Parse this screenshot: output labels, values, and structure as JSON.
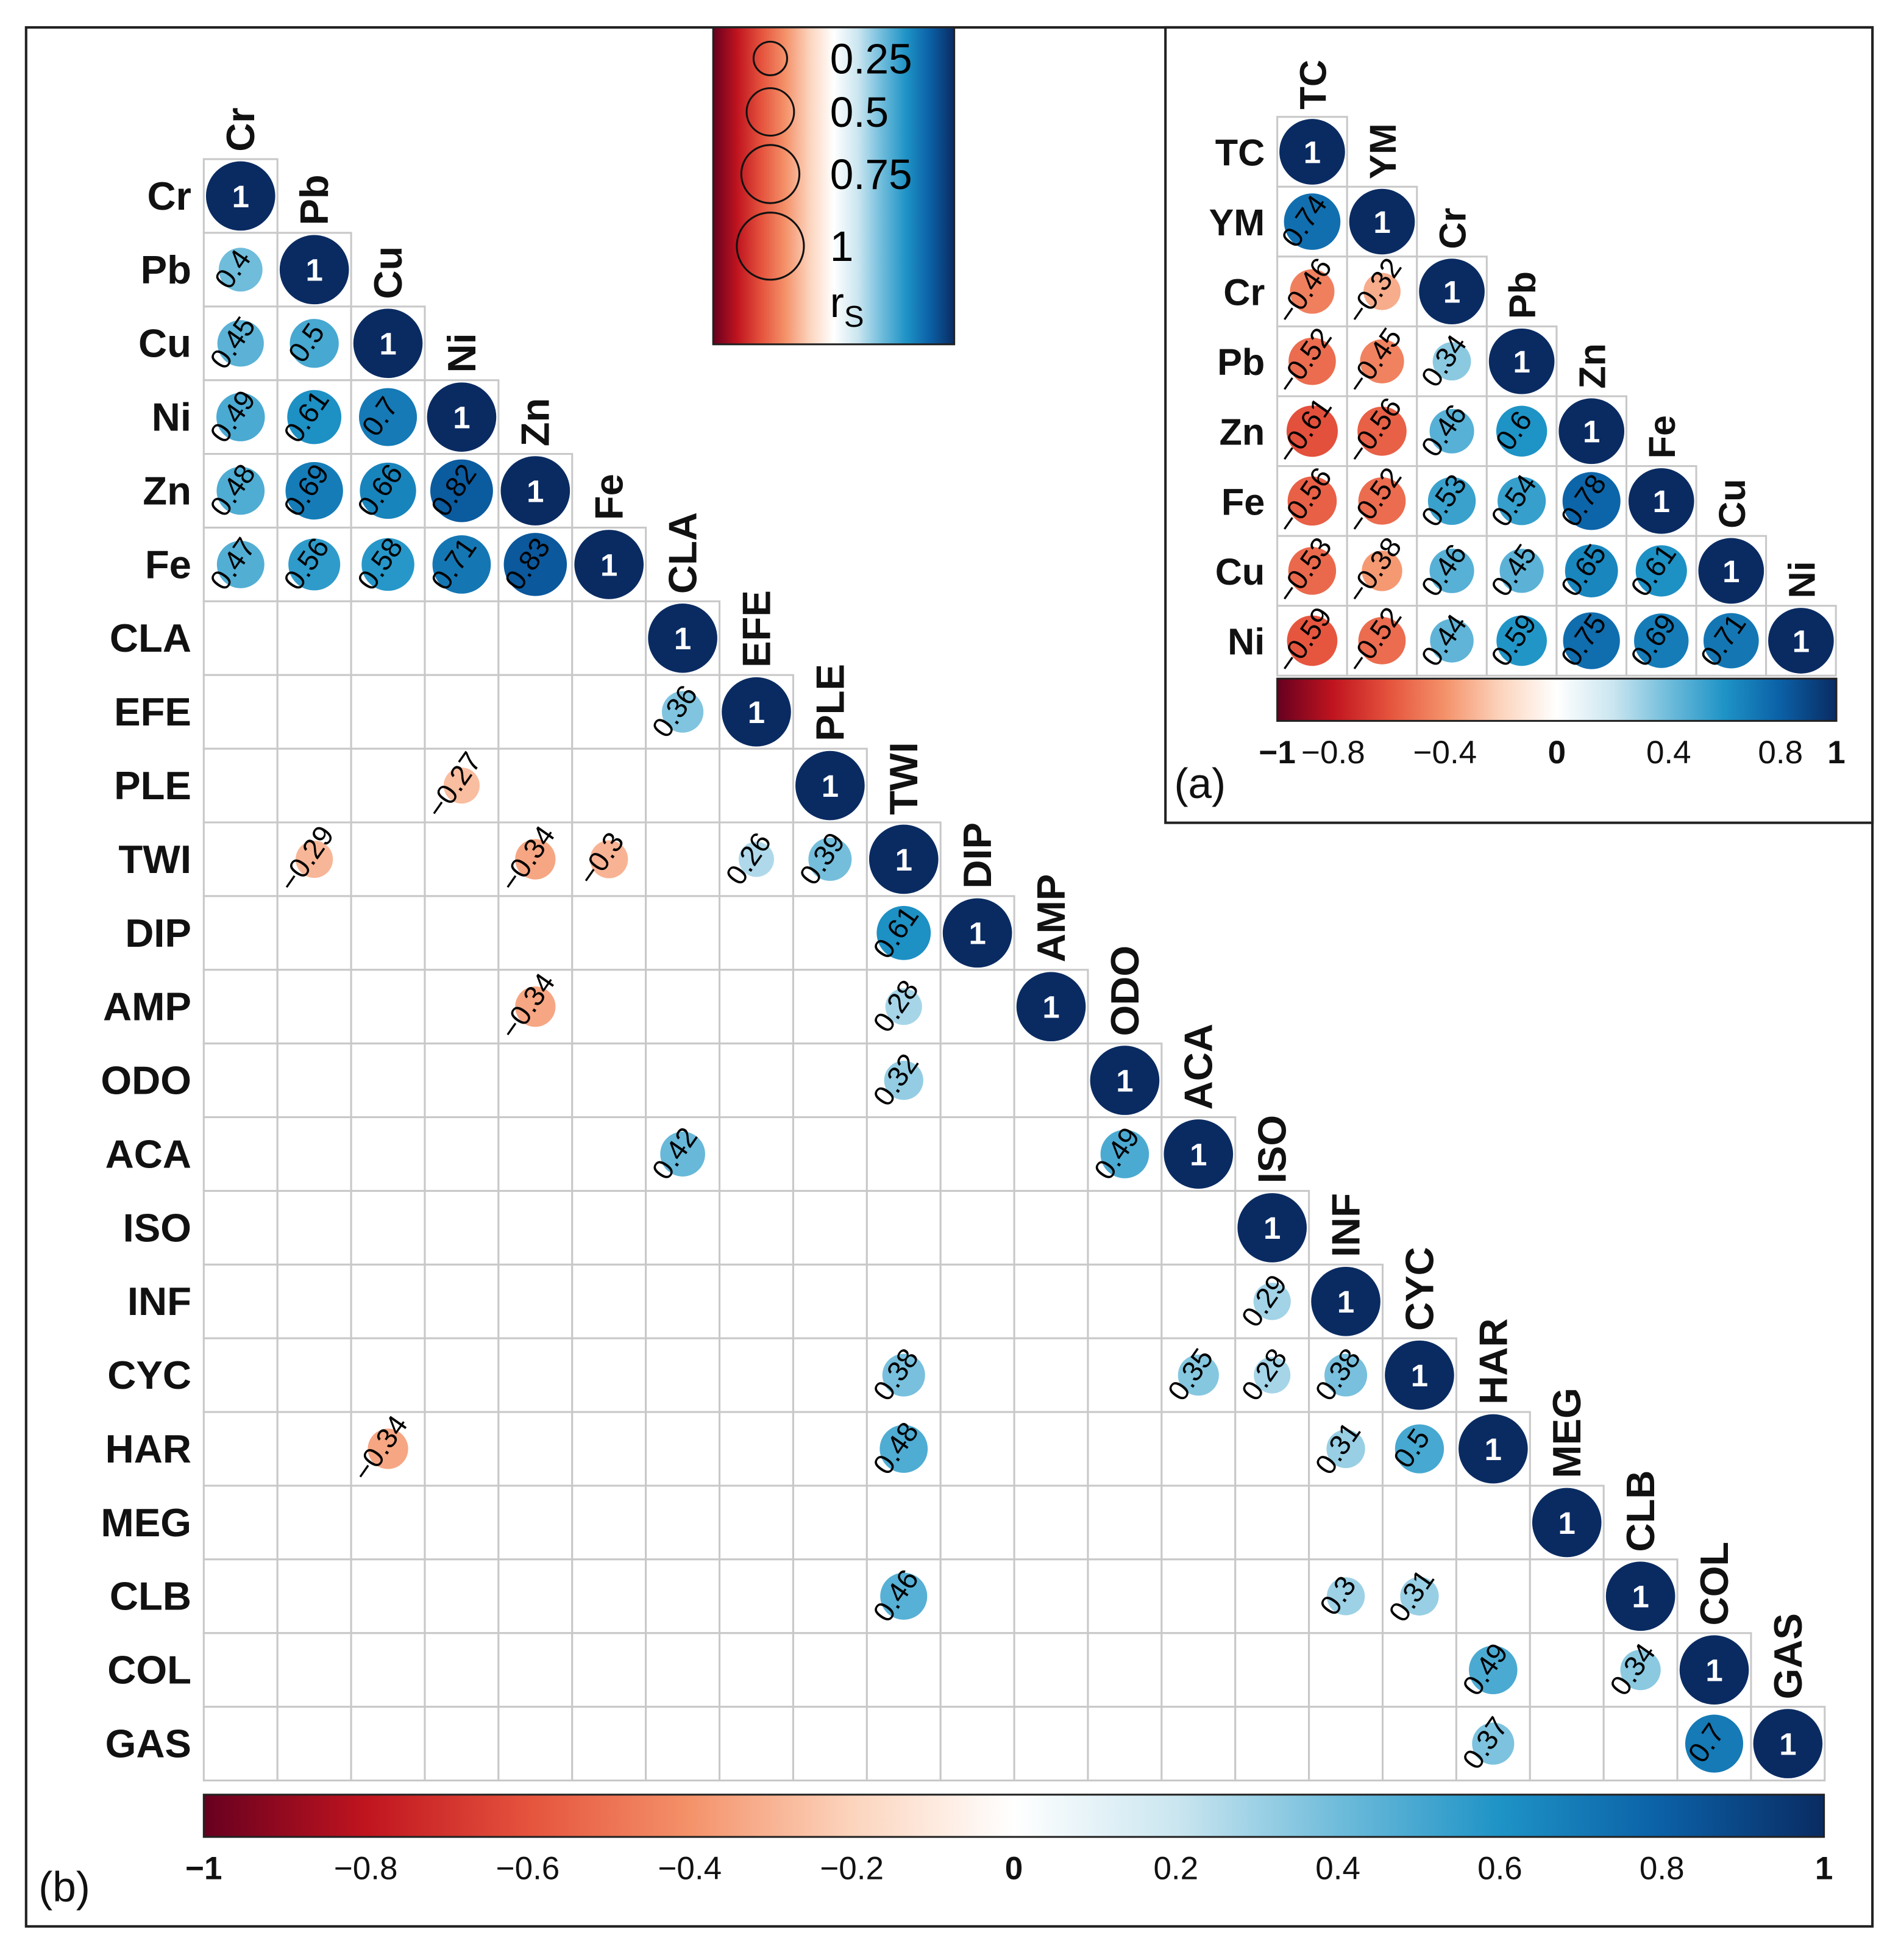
{
  "chart_data": [
    {
      "type": "heatmap",
      "panel_label": "(b)",
      "variables": [
        "Cr",
        "Pb",
        "Cu",
        "Ni",
        "Zn",
        "Fe",
        "CLA",
        "EFE",
        "PLE",
        "TWI",
        "DIP",
        "AMP",
        "ODO",
        "ACA",
        "ISO",
        "INF",
        "CYC",
        "HAR",
        "MEG",
        "CLB",
        "COL",
        "GAS"
      ],
      "diagonal_value": 1,
      "entries": [
        [
          "Pb",
          "Cr",
          0.4
        ],
        [
          "Cu",
          "Cr",
          0.45
        ],
        [
          "Cu",
          "Pb",
          0.5
        ],
        [
          "Ni",
          "Cr",
          0.49
        ],
        [
          "Ni",
          "Pb",
          0.61
        ],
        [
          "Ni",
          "Cu",
          0.7
        ],
        [
          "Zn",
          "Cr",
          0.48
        ],
        [
          "Zn",
          "Pb",
          0.69
        ],
        [
          "Zn",
          "Cu",
          0.66
        ],
        [
          "Zn",
          "Ni",
          0.82
        ],
        [
          "Fe",
          "Cr",
          0.47
        ],
        [
          "Fe",
          "Pb",
          0.56
        ],
        [
          "Fe",
          "Cu",
          0.58
        ],
        [
          "Fe",
          "Ni",
          0.71
        ],
        [
          "Fe",
          "Zn",
          0.83
        ],
        [
          "EFE",
          "CLA",
          0.36
        ],
        [
          "PLE",
          "Ni",
          -0.27
        ],
        [
          "TWI",
          "Pb",
          -0.29
        ],
        [
          "TWI",
          "Zn",
          -0.34
        ],
        [
          "TWI",
          "Fe",
          -0.3
        ],
        [
          "TWI",
          "EFE",
          0.26
        ],
        [
          "TWI",
          "PLE",
          0.39
        ],
        [
          "DIP",
          "TWI",
          0.61
        ],
        [
          "AMP",
          "Zn",
          -0.34
        ],
        [
          "AMP",
          "TWI",
          0.28
        ],
        [
          "ODO",
          "TWI",
          0.32
        ],
        [
          "ACA",
          "CLA",
          0.42
        ],
        [
          "ACA",
          "ODO",
          0.49
        ],
        [
          "INF",
          "ISO",
          0.29
        ],
        [
          "CYC",
          "TWI",
          0.38
        ],
        [
          "CYC",
          "ACA",
          0.35
        ],
        [
          "CYC",
          "ISO",
          0.28
        ],
        [
          "CYC",
          "INF",
          0.38
        ],
        [
          "HAR",
          "Cu",
          -0.34
        ],
        [
          "HAR",
          "TWI",
          0.48
        ],
        [
          "HAR",
          "INF",
          0.31
        ],
        [
          "HAR",
          "CYC",
          0.5
        ],
        [
          "CLB",
          "TWI",
          0.46
        ],
        [
          "CLB",
          "INF",
          0.3
        ],
        [
          "CLB",
          "CYC",
          0.31
        ],
        [
          "COL",
          "HAR",
          0.49
        ],
        [
          "COL",
          "CLB",
          0.34
        ],
        [
          "GAS",
          "HAR",
          0.37
        ],
        [
          "GAS",
          "COL",
          0.7
        ]
      ],
      "colorbar": {
        "range": [
          -1,
          1
        ],
        "ticks": [
          "-1",
          "-0.8",
          "-0.6",
          "-0.4",
          "-0.2",
          "0",
          "0.2",
          "0.4",
          "0.6",
          "0.8",
          "1"
        ],
        "tick_values": [
          -1,
          -0.8,
          -0.6,
          -0.4,
          -0.2,
          0,
          0.2,
          0.4,
          0.6,
          0.8,
          1
        ],
        "bold_ticks": [
          "-1",
          "0",
          "1"
        ]
      }
    },
    {
      "type": "heatmap",
      "panel_label": "(a)",
      "variables": [
        "TC",
        "YM",
        "Cr",
        "Pb",
        "Zn",
        "Fe",
        "Cu",
        "Ni"
      ],
      "diagonal_value": 1,
      "entries": [
        [
          "YM",
          "TC",
          0.74
        ],
        [
          "Cr",
          "TC",
          -0.46
        ],
        [
          "Cr",
          "YM",
          -0.32
        ],
        [
          "Pb",
          "TC",
          -0.52
        ],
        [
          "Pb",
          "YM",
          -0.45
        ],
        [
          "Pb",
          "Cr",
          0.34
        ],
        [
          "Zn",
          "TC",
          -0.61
        ],
        [
          "Zn",
          "YM",
          -0.56
        ],
        [
          "Zn",
          "Cr",
          0.46
        ],
        [
          "Zn",
          "Pb",
          0.6
        ],
        [
          "Fe",
          "TC",
          -0.56
        ],
        [
          "Fe",
          "YM",
          -0.52
        ],
        [
          "Fe",
          "Cr",
          0.53
        ],
        [
          "Fe",
          "Pb",
          0.54
        ],
        [
          "Fe",
          "Zn",
          0.78
        ],
        [
          "Cu",
          "TC",
          -0.53
        ],
        [
          "Cu",
          "YM",
          -0.38
        ],
        [
          "Cu",
          "Cr",
          0.46
        ],
        [
          "Cu",
          "Pb",
          0.45
        ],
        [
          "Cu",
          "Zn",
          0.65
        ],
        [
          "Cu",
          "Fe",
          0.61
        ],
        [
          "Ni",
          "TC",
          -0.59
        ],
        [
          "Ni",
          "YM",
          -0.52
        ],
        [
          "Ni",
          "Cr",
          0.44
        ],
        [
          "Ni",
          "Pb",
          0.59
        ],
        [
          "Ni",
          "Zn",
          0.75
        ],
        [
          "Ni",
          "Fe",
          0.69
        ],
        [
          "Ni",
          "Cu",
          0.71
        ]
      ],
      "colorbar": {
        "range": [
          -1,
          1
        ],
        "ticks": [
          "-1",
          "-0.8",
          "-0.4",
          "0",
          "0.4",
          "0.8",
          "1"
        ],
        "tick_values": [
          -1,
          -0.8,
          -0.4,
          0,
          0.4,
          0.8,
          1
        ],
        "bold_ticks": [
          "-1",
          "0",
          "1"
        ]
      }
    }
  ],
  "size_legend": {
    "values": [
      0.25,
      0.5,
      0.75,
      1
    ],
    "labels": [
      "0.25",
      "0.5",
      "0.75",
      "1"
    ],
    "symbol": "r",
    "symbol_subscript": "S"
  },
  "colors": {
    "scale_stops": [
      [
        -1,
        "#67001f"
      ],
      [
        -0.8,
        "#c0141f"
      ],
      [
        -0.6,
        "#e5533d"
      ],
      [
        -0.4,
        "#f4926a"
      ],
      [
        -0.2,
        "#fcd4bd"
      ],
      [
        0,
        "#ffffff"
      ],
      [
        0.2,
        "#cbe6f0"
      ],
      [
        0.4,
        "#6fbcdb"
      ],
      [
        0.6,
        "#1e93c6"
      ],
      [
        0.8,
        "#0b60a6"
      ],
      [
        1,
        "#0a2b62"
      ]
    ],
    "grid": "#c8c8c8",
    "diag_text": "#ffffff"
  }
}
